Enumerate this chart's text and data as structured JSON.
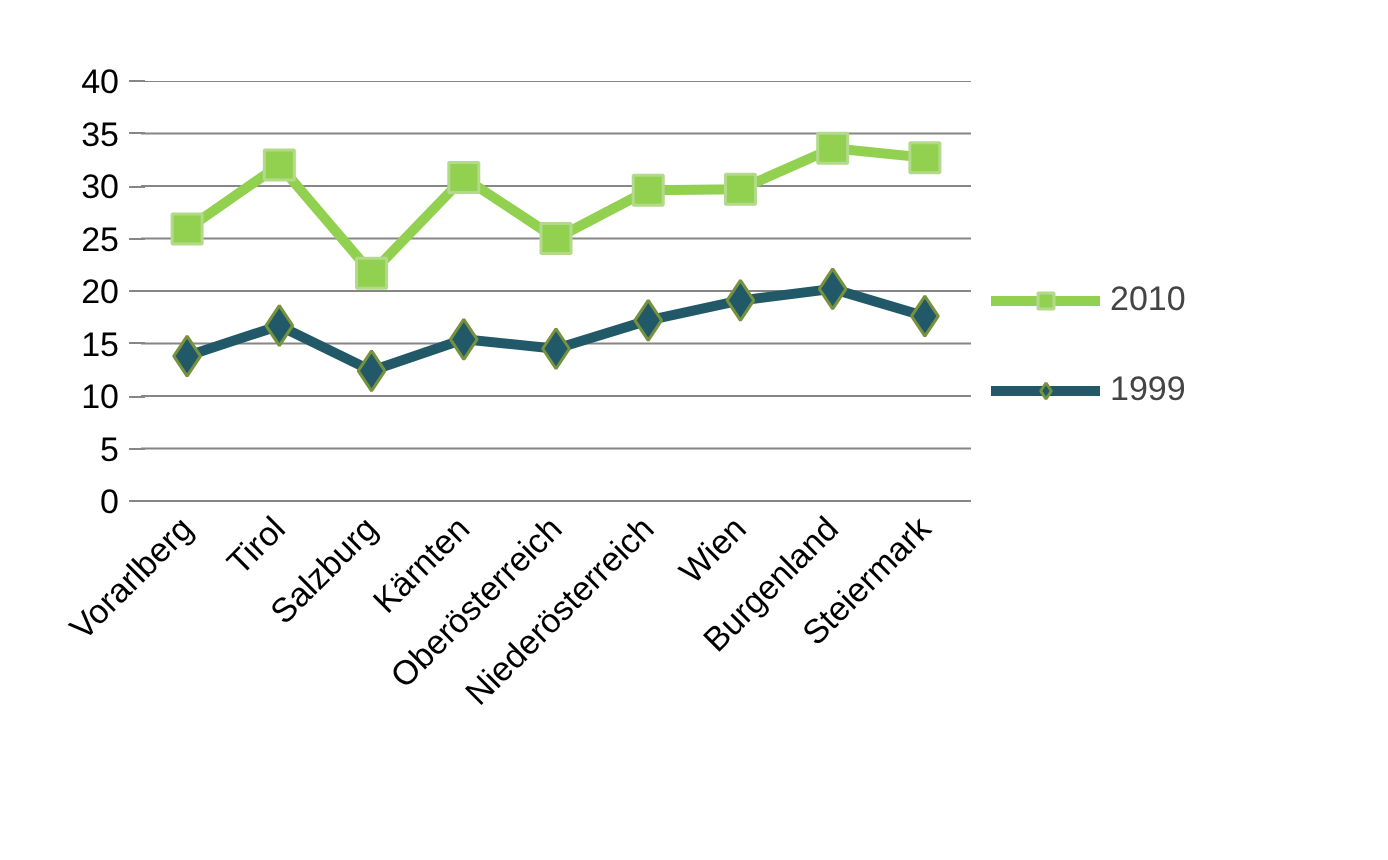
{
  "chart_data": {
    "type": "line",
    "categories": [
      "Vorarlberg",
      "Tirol",
      "Salzburg",
      "Kärnten",
      "Oberösterreich",
      "Niederösterreich",
      "Wien",
      "Burgenland",
      "Steiermark"
    ],
    "series": [
      {
        "name": "2010",
        "color": "#92d050",
        "marker": "square",
        "values": [
          25.9,
          32.0,
          21.7,
          30.8,
          25.0,
          29.6,
          29.7,
          33.6,
          32.7
        ]
      },
      {
        "name": "1999",
        "color": "#215968",
        "marker": "diamond",
        "values": [
          13.8,
          16.7,
          12.4,
          15.4,
          14.5,
          17.2,
          19.1,
          20.2,
          17.6
        ]
      }
    ],
    "ylim": [
      0,
      40
    ],
    "yticks": [
      0,
      5,
      10,
      15,
      20,
      25,
      30,
      35,
      40
    ],
    "grid": "y",
    "legend": "right",
    "line_style": "solid"
  }
}
